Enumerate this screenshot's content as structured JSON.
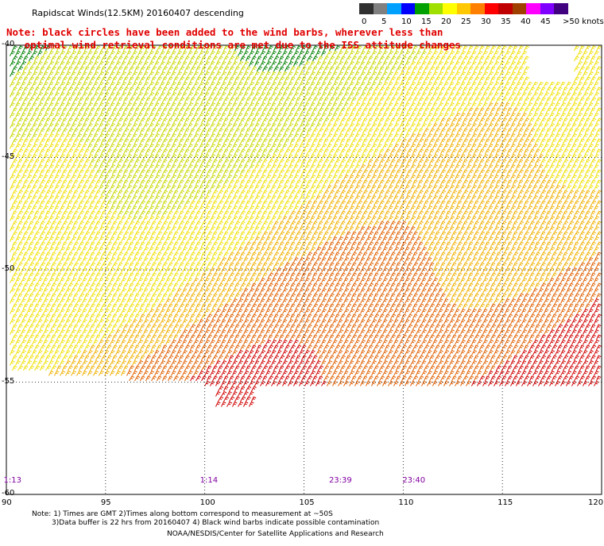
{
  "title": "Rapidscat Winds(12.5KM) 20160407 descending",
  "legend": {
    "colors": [
      "#303030",
      "#808080",
      "#00a0ff",
      "#0000ff",
      "#00a000",
      "#a0e000",
      "#ffff00",
      "#ffc800",
      "#ff8000",
      "#ff0000",
      "#c00000",
      "#a04000",
      "#ff00ff",
      "#8000ff",
      "#400080"
    ],
    "ticks": [
      "0",
      "5",
      "10",
      "15",
      "20",
      "25",
      "30",
      "35",
      "40",
      "45"
    ],
    "unit_label": ">50 knots"
  },
  "note": {
    "line1": "Note: black circles have been added to the wind barbs, wherever less than",
    "line2": "optimal wind retrieval conditions are met due to the ISS attitude changes"
  },
  "map": {
    "lat_labels": [
      "-40",
      "-45",
      "-50",
      "-55",
      "-60"
    ],
    "lon_labels": [
      "90",
      "95",
      "100",
      "105",
      "110",
      "115",
      "120"
    ],
    "lat_values": [
      -40,
      -45,
      -50,
      -55,
      -60
    ],
    "lon_values": [
      90,
      95,
      100,
      105,
      110,
      115,
      120
    ],
    "time_labels": [
      {
        "text": "1:13",
        "lon": 90.1,
        "color": "#8000a0"
      },
      {
        "text": "1:14",
        "lon": 100.0,
        "color": "#8000a0"
      },
      {
        "text": "23:39",
        "lon": 106.5,
        "color": "#8000a0"
      },
      {
        "text": "23:40",
        "lon": 110.2,
        "color": "#8000a0"
      }
    ]
  },
  "footer": {
    "line1": "Note: 1) Times are GMT 2)Times along bottom correspond to measurement at ~50S",
    "line2": "3)Data buffer is 22 hrs from 20160407 4) Black wind barbs indicate possible contamination",
    "line3": "NOAA/NESDIS/Center for Satellite Applications and Research"
  }
}
